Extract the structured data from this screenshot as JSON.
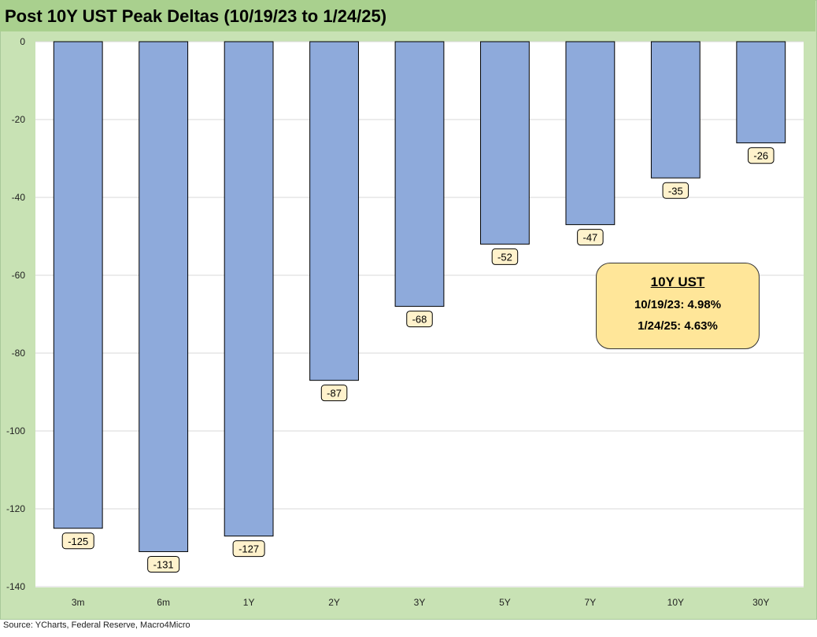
{
  "title": "Post 10Y UST Peak Deltas (10/19/23 to 1/24/25)",
  "source": "Source: YCharts, Federal Reserve, Macro4Micro",
  "callout": {
    "title": "10Y UST",
    "line1": "10/19/23: 4.98%",
    "line2": "1/24/25: 4.63%"
  },
  "colors": {
    "bar": "#8eaadb",
    "frame": "#c8e2b4",
    "title_bar": "#a9d08e",
    "label_box": "#fff2cc",
    "callout": "#ffe699"
  },
  "chart_data": {
    "type": "bar",
    "categories": [
      "3m",
      "6m",
      "1Y",
      "2Y",
      "3Y",
      "5Y",
      "7Y",
      "10Y",
      "30Y"
    ],
    "values": [
      -125,
      -131,
      -127,
      -87,
      -68,
      -52,
      -47,
      -35,
      -26
    ],
    "data_labels": [
      "-125",
      "-131",
      "-127",
      "-87",
      "-68",
      "-52",
      "-47",
      "-35",
      "-26"
    ],
    "title": "Post 10Y UST Peak Deltas (10/19/23 to 1/24/25)",
    "xlabel": "",
    "ylabel": "",
    "ylim": [
      -140,
      0
    ],
    "yticks": [
      0,
      -20,
      -40,
      -60,
      -80,
      -100,
      -120,
      -140
    ],
    "grid": true
  }
}
